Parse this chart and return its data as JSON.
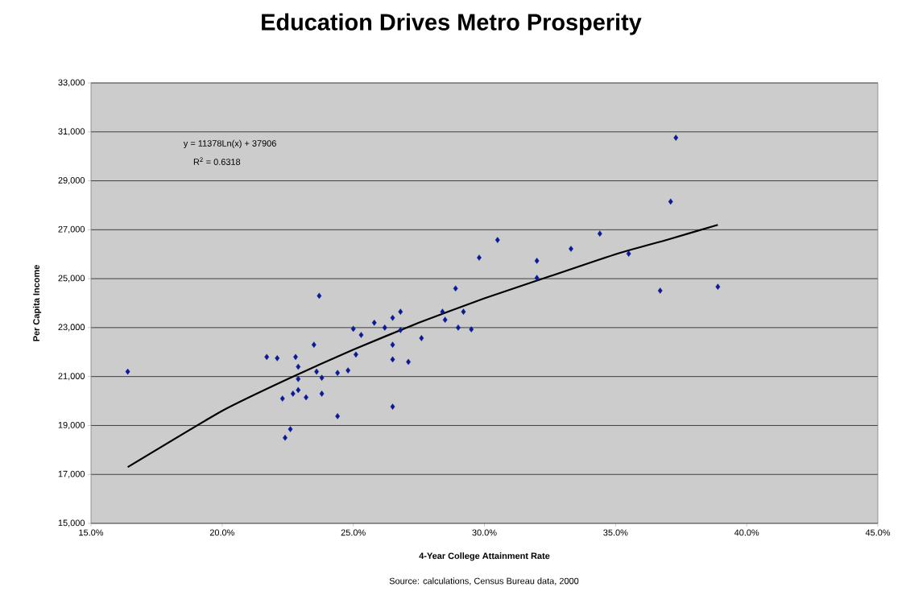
{
  "chart_data": {
    "type": "scatter",
    "title": "Education Drives Metro Prosperity",
    "xlabel": "4-Year College Attainment Rate",
    "ylabel": "Per Capita Income",
    "annotations": [
      "y = 11378Ln(x) + 37906",
      "R$^{2}$ = 0.6318",
      "Source: calculations, Census Bureau data, 2000"
    ],
    "xlim": [
      15,
      45
    ],
    "ylim": [
      15000,
      33000
    ],
    "xticks": [
      {
        "value": 15,
        "label": "15.0%"
      },
      {
        "value": 20,
        "label": "20.0%"
      },
      {
        "value": 25,
        "label": "25.0%"
      },
      {
        "value": 30,
        "label": "30.0%"
      },
      {
        "value": 35,
        "label": "35.0%"
      },
      {
        "value": 40,
        "label": "40.0%"
      },
      {
        "value": 45,
        "label": "45.0%"
      }
    ],
    "yticks": [
      {
        "value": 15000,
        "label": "15,000"
      },
      {
        "value": 17000,
        "label": "17,000"
      },
      {
        "value": 19000,
        "label": "19,000"
      },
      {
        "value": 21000,
        "label": "21,000"
      },
      {
        "value": 23000,
        "label": "23,000"
      },
      {
        "value": 25000,
        "label": "25,000"
      },
      {
        "value": 27000,
        "label": "27,000"
      },
      {
        "value": 29000,
        "label": "29,000"
      },
      {
        "value": 31000,
        "label": "31,000"
      },
      {
        "value": 33000,
        "label": "33,000"
      }
    ],
    "grid": "y",
    "marker": "diamond",
    "series": [
      {
        "color": "#0a1a96",
        "x": [
          16.4,
          21.7,
          22.1,
          22.8,
          22.9,
          22.9,
          22.9,
          22.7,
          22.3,
          22.6,
          22.4,
          23.5,
          23.6,
          23.8,
          23.8,
          23.7,
          23.2,
          24.4,
          24.8,
          24.4,
          25.0,
          25.3,
          25.1,
          25.8,
          26.2,
          26.5,
          26.8,
          26.5,
          26.5,
          26.8,
          27.1,
          26.5,
          27.6,
          28.4,
          28.5,
          28.9,
          29.0,
          29.2,
          29.5,
          29.8,
          30.5,
          32.0,
          32.0,
          33.3,
          34.4,
          35.5,
          36.7,
          37.1,
          37.3,
          38.9
        ],
        "values": [
          21200,
          21800,
          21750,
          21800,
          21400,
          20900,
          20450,
          20300,
          20100,
          18850,
          18500,
          22300,
          21200,
          20950,
          20300,
          24300,
          20150,
          21150,
          21250,
          19380,
          22950,
          22700,
          21900,
          23200,
          23000,
          23400,
          23650,
          22300,
          21700,
          22900,
          21600,
          19770,
          22570,
          23650,
          23320,
          24600,
          23000,
          23650,
          22930,
          25860,
          26580,
          25730,
          25030,
          26220,
          26840,
          26020,
          24510,
          28150,
          30760,
          24670
        ]
      },
      {
        "type": "line",
        "color": "#000000",
        "marker": "none",
        "line_style": "solid",
        "x": [
          16.4,
          20,
          22.5,
          25,
          27.5,
          30,
          32.5,
          35,
          37,
          38.9
        ],
        "values": [
          17300,
          19600,
          20900,
          22100,
          23200,
          24200,
          25100,
          26000,
          26600,
          27200
        ]
      }
    ]
  }
}
